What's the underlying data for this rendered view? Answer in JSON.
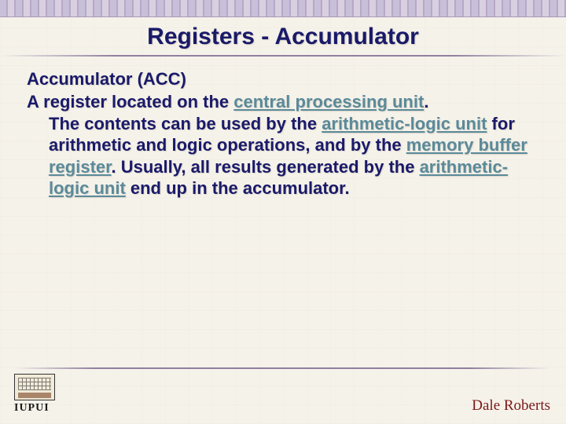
{
  "slide": {
    "title": "Registers - Accumulator",
    "subheading": "Accumulator (ACC)",
    "line1_prefix": "A register located on the ",
    "link_cpu": "central processing unit",
    "line1_after_cpu": ".",
    "line2_prefix": "The contents can be used by the ",
    "link_alu1": "arithmetic-logic unit",
    "line3_text": " for arithmetic and logic operations, and by the ",
    "link_mbr": "memory buffer register",
    "line4_text": ". Usually, all results generated by the ",
    "link_alu2": "arithmetic-logic unit",
    "line5_text": " end up in the accumulator."
  },
  "footer": {
    "logo_text": "IUPUI",
    "author": "Dale Roberts"
  },
  "style": {
    "title_color": "#1a1a6a",
    "text_color": "#1a1a6a",
    "link_color": "#5a8a9a",
    "author_color": "#7a1818",
    "background_color": "#f5f2ea",
    "border_pattern_color": "#c8bfd8",
    "title_fontsize": 30,
    "body_fontsize": 22,
    "author_fontsize": 19
  }
}
